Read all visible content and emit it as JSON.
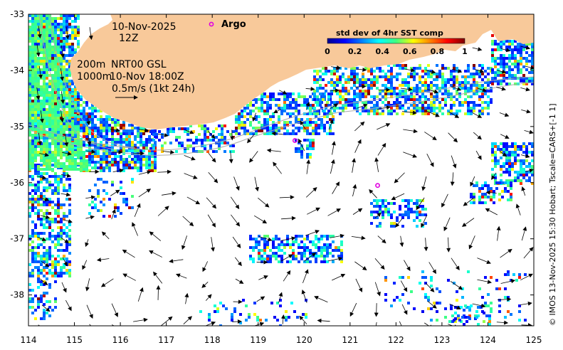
{
  "colors": {
    "land": "#f8c99a",
    "frame": "#000000",
    "arrow": "#000000",
    "argo": "#e000e0",
    "contour": "#aaaaaa"
  },
  "annotations": {
    "date": "10-Nov-2025",
    "hour": "12Z",
    "contour_200": "200m",
    "contour_1000": "1000m",
    "product": "NRT00 GSL",
    "valid_time": "10-Nov 18:00Z",
    "scale_arrow": "0.5m/s (1kt 24h)",
    "argo_legend": "Argo"
  },
  "colorbar": {
    "title": "std dev of 4hr SST comp",
    "ticks": [
      "0",
      "0.2",
      "0.4",
      "0.6",
      "0.8",
      "1"
    ],
    "colormap": "jet"
  },
  "side_credit": "© IMOS 13-Nov-2025 15:30 Hobart; Tscale=CARS+[-1 1]",
  "axes": {
    "x_ticks": [
      "114",
      "115",
      "116",
      "117",
      "118",
      "119",
      "120",
      "121",
      "122",
      "123",
      "124",
      "125"
    ],
    "y_ticks": [
      "-33",
      "-34",
      "-35",
      "-36",
      "-37",
      "-38"
    ],
    "lon_range": [
      114,
      125
    ],
    "lat_range": [
      -38.55,
      -33
    ]
  },
  "argo_floats": [
    {
      "lon": 119.8,
      "lat": -35.25
    },
    {
      "lon": 121.6,
      "lat": -36.05
    }
  ]
}
